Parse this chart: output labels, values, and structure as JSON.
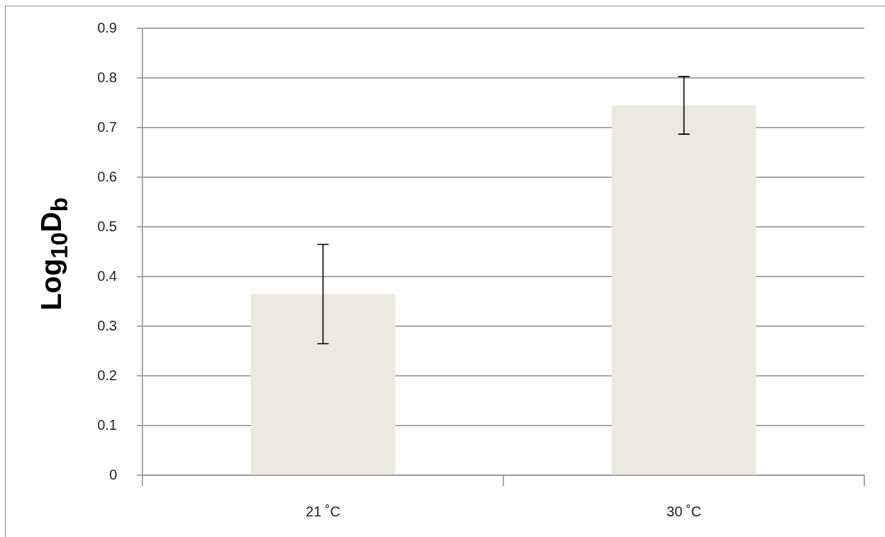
{
  "chart_data": {
    "type": "bar",
    "ylabel": "Log$_{10}$D$_{b}$",
    "categories": [
      "21 ˚C",
      "30 ˚C"
    ],
    "values": [
      0.365,
      0.745
    ],
    "errors": [
      0.1,
      0.058
    ],
    "color": "#ece9df",
    "ylim": [
      0,
      0.9
    ],
    "yticks": [
      0,
      0.1,
      0.2,
      0.3,
      0.4,
      0.5,
      0.6,
      0.7,
      0.8,
      0.9
    ],
    "grid": "y"
  }
}
